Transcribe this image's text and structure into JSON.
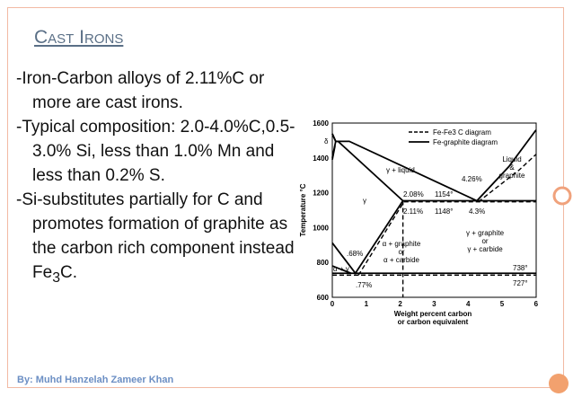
{
  "title": "Cast Irons",
  "bullets": [
    {
      "text": "-Iron-Carbon alloys of 2.11%C or more are cast irons."
    },
    {
      "text": "-Typical composition: 2.0-4.0%C,0.5-3.0% Si, less than 1.0% Mn and less than 0.2% S."
    },
    {
      "text": "-Si-substitutes partially for C and promotes formation of graphite as the carbon rich component instead Fe",
      "sub": "3",
      "tail": "C."
    }
  ],
  "footer": "By: Muhd Hanzelah Zameer Khan",
  "figure": {
    "y_label": "Temperature °C",
    "x_label": [
      "Weight percent carbon",
      "or carbon equivalent"
    ],
    "yticks": [
      "1600",
      "1400",
      "1200",
      "1000",
      "800",
      "600"
    ],
    "xticks": [
      "0",
      "1",
      "2",
      "3",
      "4",
      "5",
      "6"
    ],
    "legend": [
      "Fe-Fe3 C diagram",
      "Fe-graphite diagram"
    ],
    "labels": [
      "δ",
      "γ + liquid",
      "γ",
      "2.08%",
      "1154°",
      "2.11%",
      "1148°",
      "4.26%",
      "4.3%",
      "Liquid",
      "&",
      "graphite",
      "γ + graphite",
      "or",
      "γ + carbide",
      "α + graphite",
      "or",
      "α + carbide",
      ".68%",
      ".77%",
      "α + γ",
      "738°",
      "727°"
    ]
  }
}
